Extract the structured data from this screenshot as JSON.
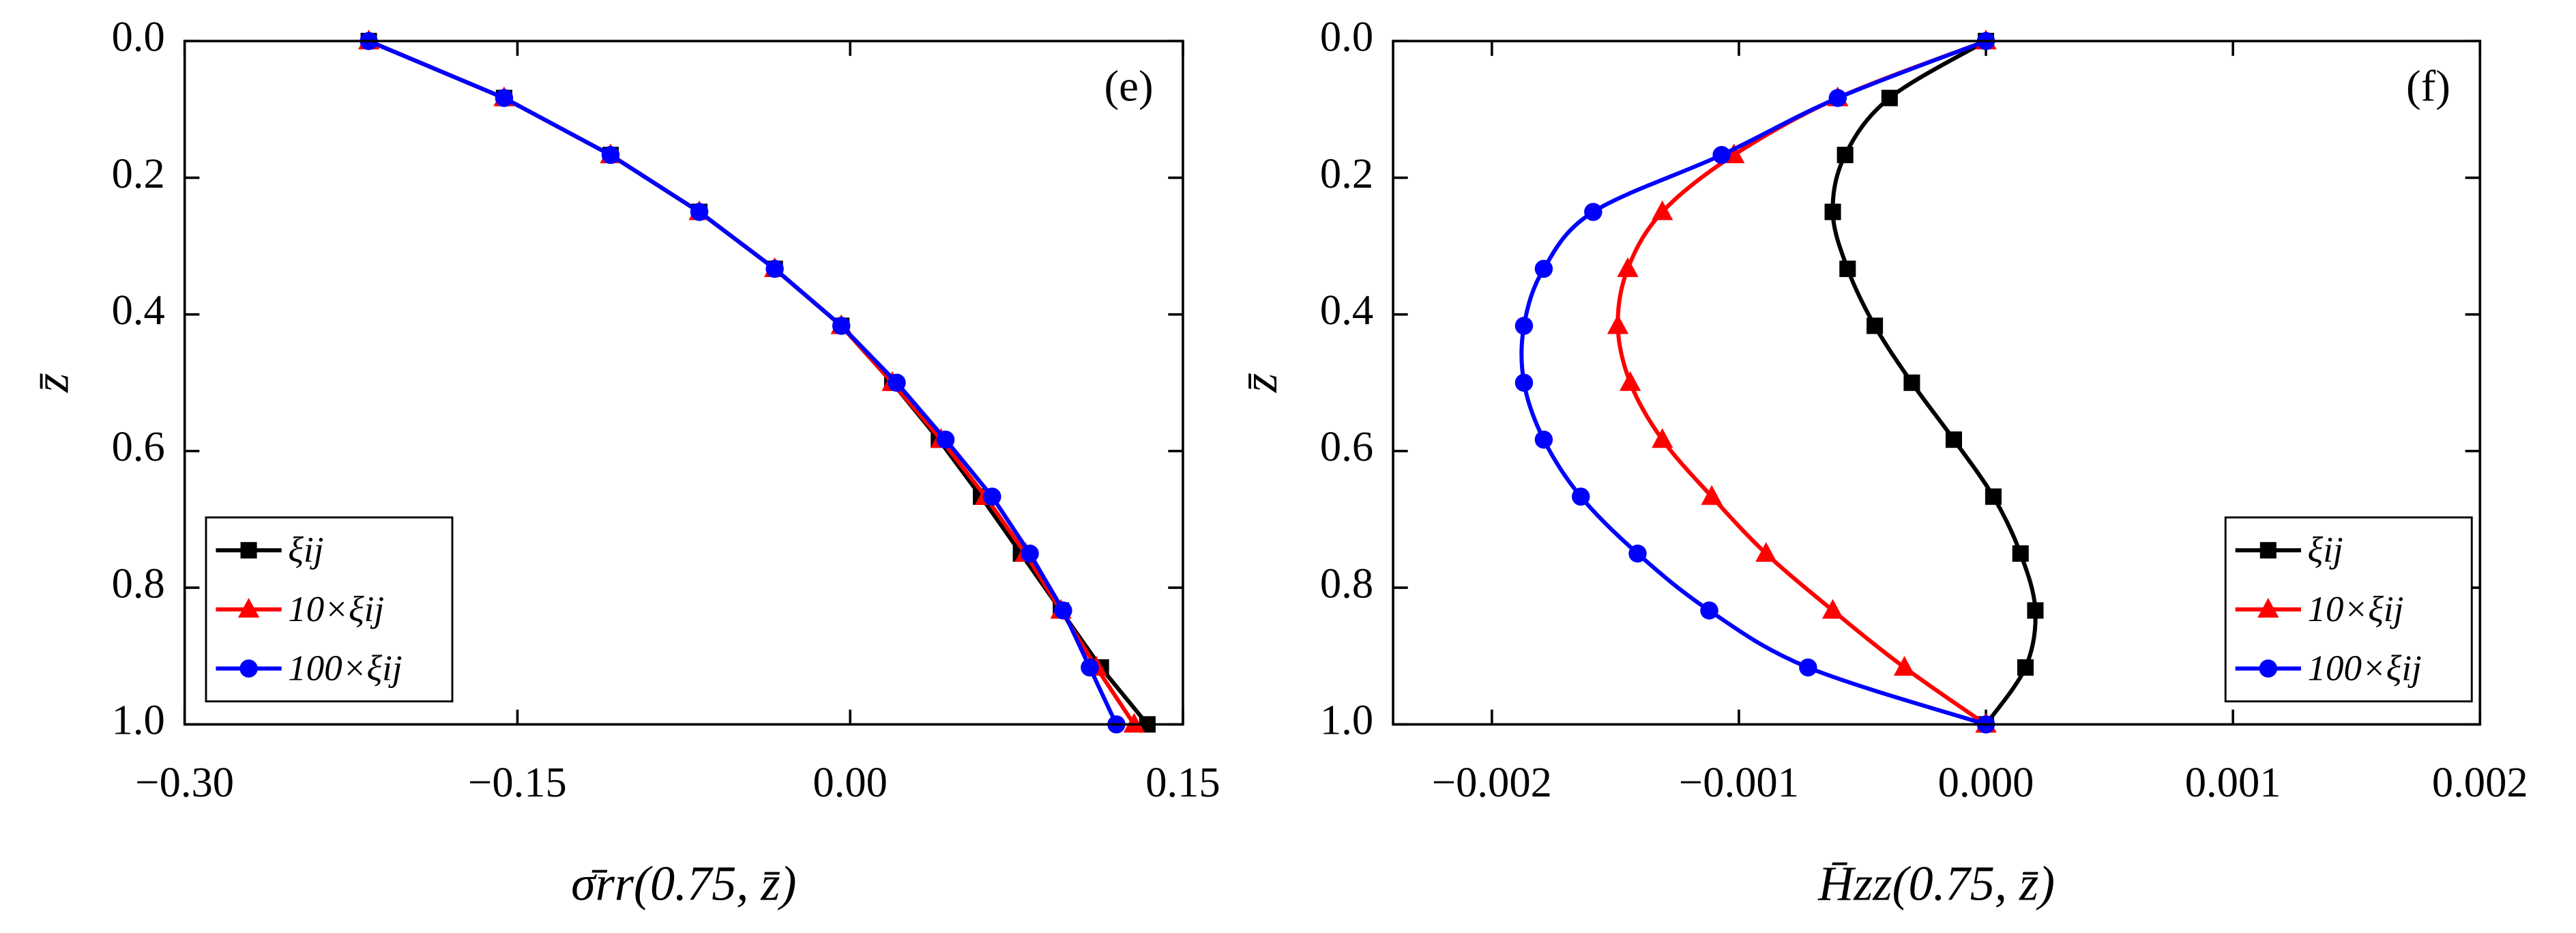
{
  "chart_data": [
    {
      "type": "line",
      "panel": "(e)",
      "xlabel": "σ̄rr(0.75, z̄)",
      "ylabel": "z̄",
      "xlim": [
        -0.3,
        0.15
      ],
      "xticks": [
        {
          "value": -0.3,
          "label": "−0.30"
        },
        {
          "value": -0.15,
          "label": "−0.15"
        },
        {
          "value": 0,
          "label": "0.00"
        },
        {
          "value": 0.15,
          "label": "0.15"
        }
      ],
      "ylim": [
        0,
        1
      ],
      "y_inverted": true,
      "yticks": [
        {
          "value": 0,
          "label": "0.0"
        },
        0.2,
        0.4,
        0.6,
        0.8,
        {
          "value": 1,
          "label": "1.0"
        }
      ],
      "legend": "lower left",
      "smooth": false,
      "y": [
        0,
        0.0833,
        0.1667,
        0.25,
        0.3333,
        0.4167,
        0.5,
        0.5833,
        0.6667,
        0.75,
        0.8333,
        0.9167,
        1.0
      ],
      "series": [
        {
          "name": "ξij",
          "color": "#000000",
          "marker": "square",
          "x": [
            -0.217,
            -0.156,
            -0.108,
            -0.068,
            -0.034,
            -0.004,
            0.019,
            0.04,
            0.059,
            0.077,
            0.095,
            0.113,
            0.134
          ]
        },
        {
          "name": "10×ξij",
          "color": "#ff0000",
          "marker": "triangle",
          "x": [
            -0.217,
            -0.156,
            -0.108,
            -0.068,
            -0.034,
            -0.004,
            0.019,
            0.041,
            0.061,
            0.079,
            0.095,
            0.111,
            0.128
          ]
        },
        {
          "name": "100×ξij",
          "color": "#0000ff",
          "marker": "circle",
          "x": [
            -0.217,
            -0.156,
            -0.108,
            -0.068,
            -0.034,
            -0.004,
            0.021,
            0.043,
            0.064,
            0.081,
            0.096,
            0.108,
            0.12
          ]
        }
      ]
    },
    {
      "type": "line",
      "panel": "(f)",
      "xlabel": "H̄zz(0.75, z̄)",
      "ylabel": "z̄",
      "xlim": [
        -0.0024,
        0.002
      ],
      "xticks": [
        {
          "value": -0.002,
          "label": "−0.002"
        },
        {
          "value": -0.001,
          "label": "−0.001"
        },
        {
          "value": 0,
          "label": "0.000"
        },
        0.001,
        0.002
      ],
      "ylim": [
        0,
        1
      ],
      "y_inverted": true,
      "yticks": [
        {
          "value": 0,
          "label": "0.0"
        },
        0.2,
        0.4,
        0.6,
        0.8,
        {
          "value": 1,
          "label": "1.0"
        }
      ],
      "legend": "lower right",
      "smooth": true,
      "y": [
        0,
        0.0833,
        0.1667,
        0.25,
        0.3333,
        0.4167,
        0.5,
        0.5833,
        0.6667,
        0.75,
        0.8333,
        0.9167,
        1.0
      ],
      "series": [
        {
          "name": "ξij",
          "color": "#000000",
          "marker": "square",
          "x": [
            0,
            -0.00039,
            -0.00057,
            -0.00062,
            -0.00056,
            -0.00045,
            -0.0003,
            -0.00013,
            3e-05,
            0.00014,
            0.0002,
            0.00016,
            0
          ]
        },
        {
          "name": "10×ξij",
          "color": "#ff0000",
          "marker": "triangle",
          "x": [
            0,
            -0.0006,
            -0.00102,
            -0.00131,
            -0.00145,
            -0.00149,
            -0.00144,
            -0.00131,
            -0.00111,
            -0.00089,
            -0.00062,
            -0.00033,
            0
          ]
        },
        {
          "name": "100×ξij",
          "color": "#0000ff",
          "marker": "circle",
          "x": [
            0,
            -0.0006,
            -0.00107,
            -0.00159,
            -0.00179,
            -0.00187,
            -0.00187,
            -0.00179,
            -0.00164,
            -0.00141,
            -0.00112,
            -0.00072,
            0
          ]
        }
      ]
    }
  ]
}
